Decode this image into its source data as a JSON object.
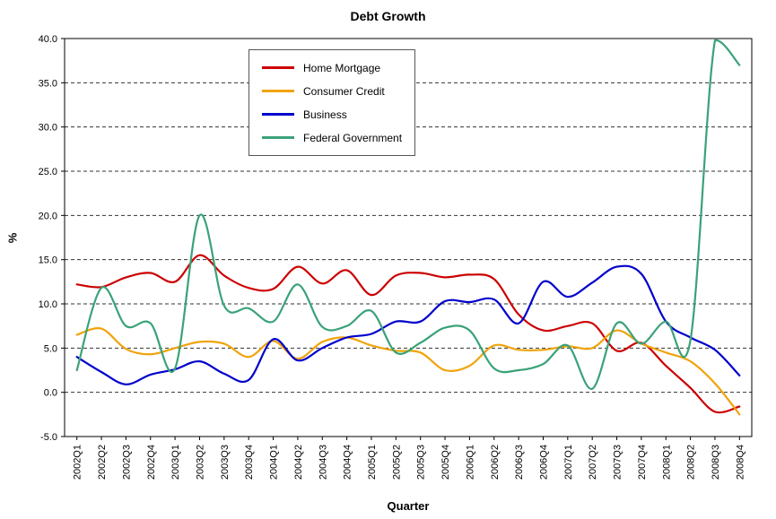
{
  "chart_data": {
    "type": "line",
    "title": "Debt Growth",
    "xlabel": "Quarter",
    "ylabel": "%",
    "ylim": [
      -5,
      40
    ],
    "ytick_step": 5,
    "grid": "horizontal-dashed",
    "legend_position": "top-left-inside",
    "line_style": "smooth",
    "categories": [
      "2002Q1",
      "2002Q2",
      "2002Q3",
      "2002Q4",
      "2003Q1",
      "2003Q2",
      "2003Q3",
      "2003Q4",
      "2004Q1",
      "2004Q2",
      "2004Q3",
      "2004Q4",
      "2005Q1",
      "2005Q2",
      "2005Q3",
      "2005Q4",
      "2006Q1",
      "2006Q2",
      "2006Q3",
      "2006Q4",
      "2007Q1",
      "2007Q2",
      "2007Q3",
      "2007Q4",
      "2008Q1",
      "2008Q2",
      "2008Q3",
      "2008Q4"
    ],
    "series": [
      {
        "name": "Home Mortgage",
        "color": "#cc0000",
        "values": [
          12.2,
          11.9,
          13.0,
          13.5,
          12.5,
          15.5,
          13.2,
          11.8,
          11.7,
          14.2,
          12.3,
          13.8,
          11.0,
          13.2,
          13.5,
          13.0,
          13.3,
          12.8,
          8.8,
          7.0,
          7.5,
          7.8,
          4.7,
          5.6,
          3.0,
          0.5,
          -2.2,
          -1.6
        ]
      },
      {
        "name": "Consumer Credit",
        "color": "#f0a30a",
        "values": [
          6.5,
          7.2,
          4.9,
          4.3,
          5.0,
          5.7,
          5.5,
          4.0,
          5.8,
          3.8,
          5.7,
          6.2,
          5.3,
          4.7,
          4.5,
          2.5,
          3.0,
          5.3,
          4.8,
          4.8,
          5.2,
          5.0,
          7.0,
          5.5,
          4.5,
          3.5,
          1.0,
          -2.5
        ]
      },
      {
        "name": "Business",
        "color": "#0000cc",
        "values": [
          4.0,
          2.3,
          0.9,
          2.0,
          2.6,
          3.5,
          2.1,
          1.4,
          6.0,
          3.6,
          5.0,
          6.2,
          6.6,
          8.0,
          8.0,
          10.3,
          10.2,
          10.5,
          7.8,
          12.5,
          10.8,
          12.4,
          14.2,
          13.4,
          8.0,
          6.2,
          4.8,
          1.9
        ]
      },
      {
        "name": "Federal Government",
        "color": "#3aa278",
        "values": [
          2.5,
          11.8,
          7.5,
          7.8,
          2.7,
          20.0,
          9.8,
          9.5,
          8.0,
          12.2,
          7.4,
          7.5,
          9.2,
          4.5,
          5.6,
          7.3,
          7.0,
          2.7,
          2.5,
          3.2,
          5.3,
          0.4,
          7.8,
          5.5,
          8.0,
          5.9,
          39.8,
          37.0
        ]
      }
    ]
  }
}
